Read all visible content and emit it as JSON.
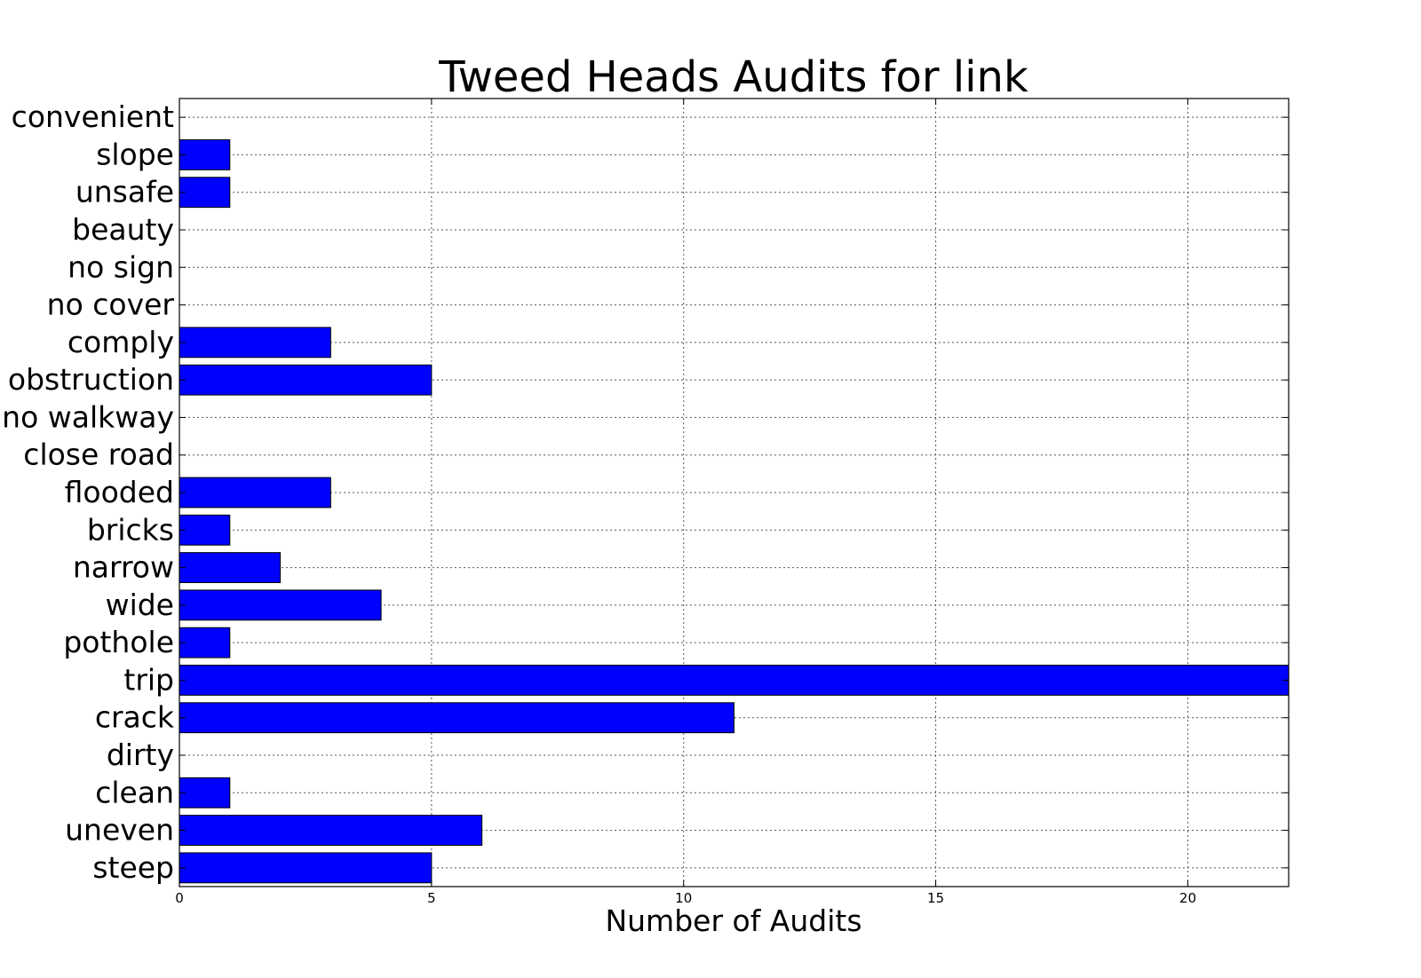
{
  "chart_data": {
    "type": "bar",
    "orientation": "horizontal",
    "title": "Tweed Heads Audits for link",
    "xlabel": "Number of Audits",
    "ylabel": "",
    "xlim": [
      0,
      22
    ],
    "xticks": [
      0,
      5,
      10,
      15,
      20
    ],
    "grid": true,
    "bar_color": "#0000ff",
    "categories": [
      "steep",
      "uneven",
      "clean",
      "dirty",
      "crack",
      "trip",
      "pothole",
      "wide",
      "narrow",
      "bricks",
      "flooded",
      "close road",
      "no walkway",
      "obstruction",
      "comply",
      "no cover",
      "no sign",
      "beauty",
      "unsafe",
      "slope",
      "convenient"
    ],
    "values": [
      5,
      6,
      1,
      0,
      11,
      22,
      1,
      4,
      2,
      1,
      3,
      0,
      0,
      5,
      3,
      0,
      0,
      0,
      1,
      1,
      0
    ]
  }
}
